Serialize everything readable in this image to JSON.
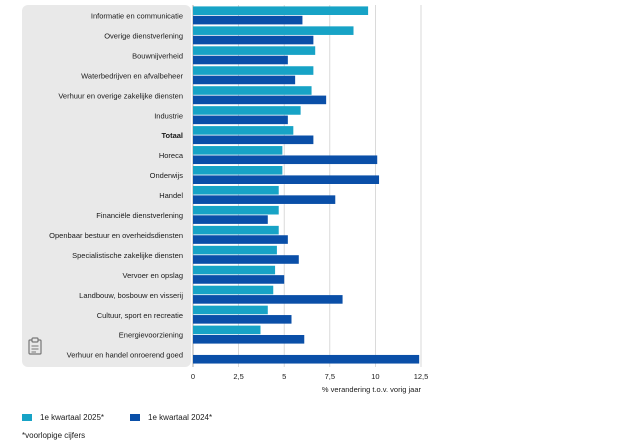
{
  "chart_data": {
    "type": "bar",
    "orientation": "horizontal",
    "categories": [
      "Informatie en communicatie",
      "Overige dienstverlening",
      "Bouwnijverheid",
      "Waterbedrijven en afvalbeheer",
      "Verhuur en overige zakelijke diensten",
      "Industrie",
      "Totaal",
      "Horeca",
      "Onderwijs",
      "Handel",
      "Financiële dienstverlening",
      "Openbaar bestuur en overheidsdiensten",
      "Specialistische zakelijke diensten",
      "Vervoer en opslag",
      "Landbouw, bosbouw en visserij",
      "Cultuur, sport en recreatie",
      "Energievoorziening",
      "Verhuur en handel onroerend goed"
    ],
    "bold_category": "Totaal",
    "series": [
      {
        "name": "1e kwartaal 2025*",
        "color": "#17a3c6",
        "values": [
          9.6,
          8.8,
          6.7,
          6.6,
          6.5,
          5.9,
          5.5,
          4.9,
          4.9,
          4.7,
          4.7,
          4.7,
          4.6,
          4.5,
          4.4,
          4.1,
          3.7,
          null
        ]
      },
      {
        "name": "1e kwartaal 2024*",
        "color": "#0a4fa8",
        "values": [
          6.0,
          6.6,
          5.2,
          5.6,
          7.3,
          5.2,
          6.6,
          10.1,
          10.2,
          7.8,
          4.1,
          5.2,
          5.8,
          5.0,
          8.2,
          5.4,
          6.1,
          12.4
        ]
      }
    ],
    "xlim": [
      0,
      12.5
    ],
    "xticks": [
      "0",
      "2,5",
      "5",
      "7,5",
      "10",
      "12,5"
    ],
    "xtick_values": [
      0,
      2.5,
      5,
      7.5,
      10,
      12.5
    ],
    "xlabel": "% verandering t.o.v. vorig jaar",
    "grid": true
  },
  "legend": {
    "items": [
      {
        "label": "1e kwartaal 2025*",
        "color": "#17a3c6"
      },
      {
        "label": "1e kwartaal 2024*",
        "color": "#0a4fa8"
      }
    ]
  },
  "footnote": "*voorlopige cijfers",
  "icons": {
    "corner": "clipboard-icon"
  }
}
